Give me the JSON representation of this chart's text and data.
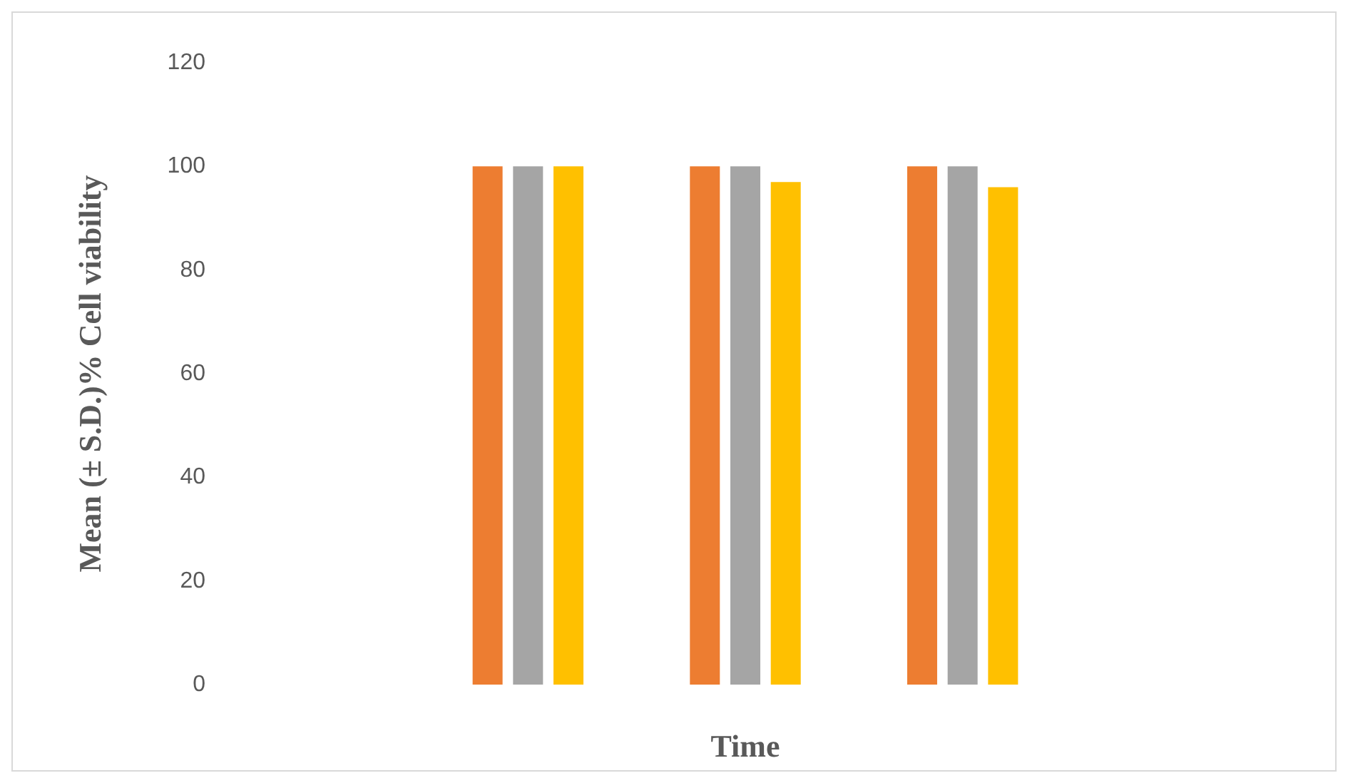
{
  "chart_data": {
    "type": "bar",
    "xlabel": "Time",
    "ylabel": "Mean (± S.D.)% Cell viability",
    "categories": [
      null,
      null,
      null
    ],
    "series": [
      {
        "color": "#ed7d31",
        "values": [
          100,
          100,
          100
        ]
      },
      {
        "color": "#a5a5a5",
        "values": [
          100,
          100,
          100
        ]
      },
      {
        "color": "#ffc000",
        "values": [
          100,
          97,
          96
        ]
      }
    ],
    "ylim": [
      0,
      120
    ],
    "yticks": [
      0,
      20,
      40,
      60,
      80,
      100,
      120
    ],
    "grid": false
  }
}
